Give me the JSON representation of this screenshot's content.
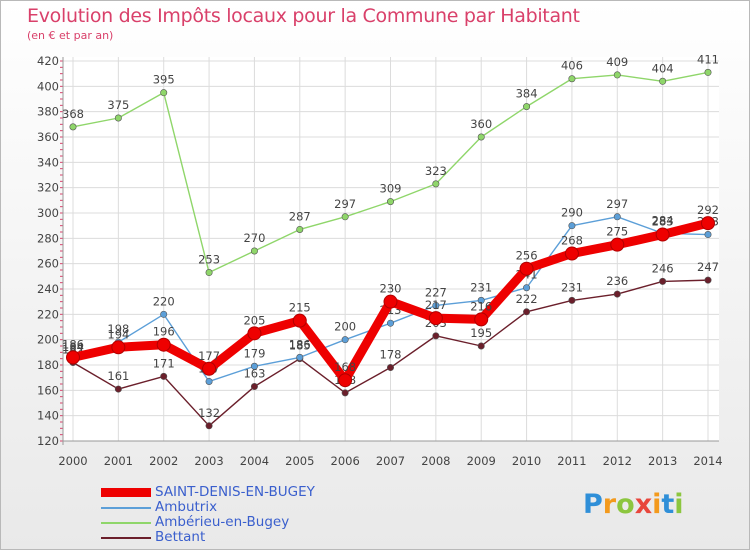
{
  "title": "Evolution des Impôts locaux pour la Commune par Habitant",
  "subtitle": "(en € et par an)",
  "brand": {
    "letters": [
      "P",
      "r",
      "o",
      "x",
      "i",
      "t",
      "i"
    ],
    "colors": [
      "#2f8fd8",
      "#f39a1d",
      "#8cc63f",
      "#e8463c",
      "#f39a1d",
      "#2f8fd8",
      "#8cc63f"
    ]
  },
  "chart_data": {
    "type": "line",
    "title": "Evolution des Impôts locaux pour la Commune par Habitant",
    "subtitle": "(en € et par an)",
    "x": [
      2000,
      2001,
      2002,
      2003,
      2004,
      2005,
      2006,
      2007,
      2008,
      2009,
      2010,
      2011,
      2012,
      2013,
      2014
    ],
    "ylim": [
      120,
      420
    ],
    "yticks": [
      120,
      140,
      160,
      180,
      200,
      220,
      240,
      260,
      280,
      300,
      320,
      340,
      360,
      380,
      400,
      420
    ],
    "grid": true,
    "legend": "bottom-left",
    "series": [
      {
        "name": "Bettant",
        "color": "#6b1f2b",
        "values": [
          182,
          161,
          171,
          132,
          163,
          185,
          158,
          178,
          203,
          195,
          222,
          231,
          236,
          246,
          247
        ]
      },
      {
        "name": "Ambérieu-en-Bugey",
        "color": "#8fd66a",
        "values": [
          368,
          375,
          395,
          253,
          270,
          287,
          297,
          309,
          323,
          360,
          384,
          406,
          409,
          404,
          411
        ]
      },
      {
        "name": "Ambutrix",
        "color": "#5c9fd8",
        "values": [
          184,
          198,
          220,
          167,
          179,
          186,
          200,
          213,
          227,
          231,
          241,
          290,
          297,
          284,
          283
        ]
      },
      {
        "name": "SAINT-DENIS-EN-BUGEY",
        "color": "#ee0000",
        "values": [
          186,
          194,
          196,
          177,
          205,
          215,
          168,
          230,
          217,
          216,
          256,
          268,
          275,
          283,
          292
        ]
      }
    ],
    "legend_order": [
      "SAINT-DENIS-EN-BUGEY",
      "Ambutrix",
      "Ambérieu-en-Bugey",
      "Bettant"
    ]
  }
}
